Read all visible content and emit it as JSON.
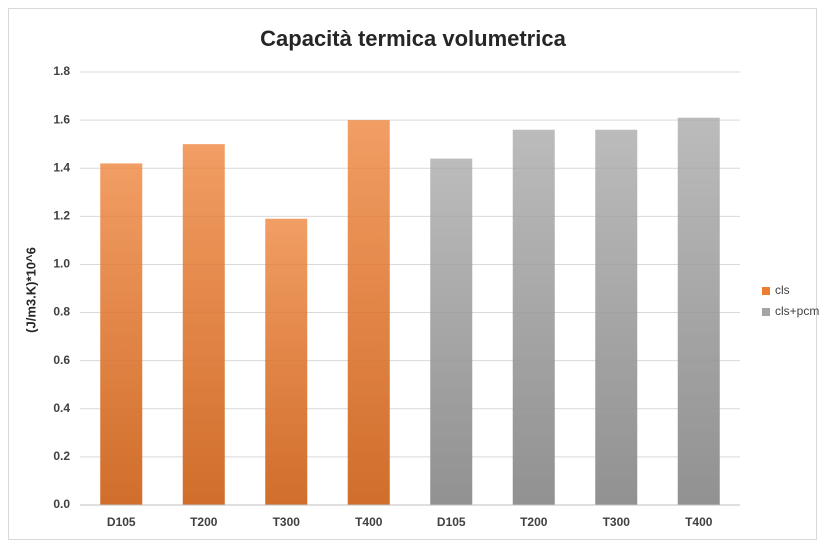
{
  "chart_data": {
    "type": "bar",
    "title": "Capacità termica volumetrica",
    "y_label": "(J/m3.K)*10^6",
    "categories": [
      "D105",
      "T200",
      "T300",
      "T400",
      "D105",
      "T200",
      "T300",
      "T400"
    ],
    "series": [
      {
        "name": "cls",
        "color": "#ed7d31",
        "values": [
          1.42,
          1.5,
          1.19,
          1.6,
          null,
          null,
          null,
          null
        ]
      },
      {
        "name": "cls+pcm",
        "color": "#a5a5a5",
        "values": [
          null,
          null,
          null,
          null,
          1.44,
          1.56,
          1.56,
          1.61
        ]
      }
    ],
    "ylim": [
      0,
      1.8
    ],
    "yticks": [
      {
        "value": 0,
        "label": "0.0"
      },
      0.2,
      0.4,
      0.6,
      0.8,
      {
        "value": 1,
        "label": "1.0"
      },
      1.2,
      1.4,
      1.6,
      1.8
    ],
    "grid": true,
    "legend": "right"
  }
}
